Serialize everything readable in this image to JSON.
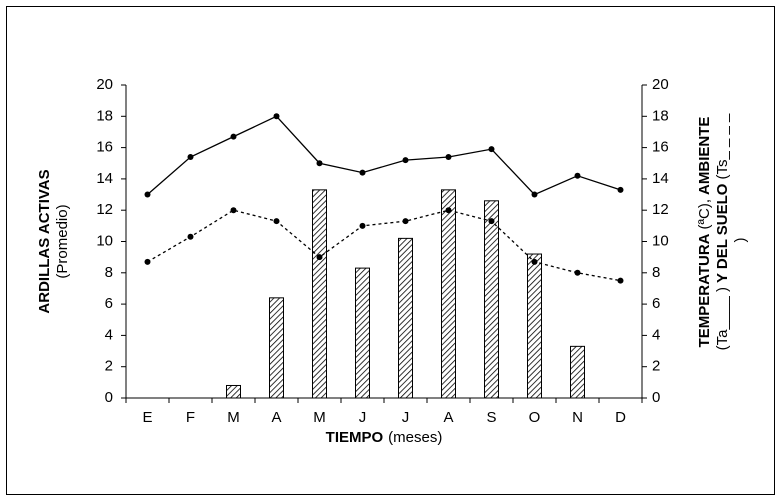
{
  "chart_data": {
    "type": "bar_line",
    "categories": [
      "E",
      "F",
      "M",
      "A",
      "M",
      "J",
      "J",
      "A",
      "S",
      "O",
      "N",
      "D"
    ],
    "series": [
      {
        "type": "bar",
        "color": "#000000",
        "values": [
          0,
          0,
          0.8,
          6.4,
          13.3,
          8.3,
          10.2,
          13.3,
          12.6,
          9.2,
          3.3,
          0
        ]
      },
      {
        "type": "line",
        "axis": "y2",
        "color": "#000000",
        "dashed": false,
        "values": [
          13,
          15.4,
          16.7,
          18,
          15,
          14.4,
          15.2,
          15.4,
          15.9,
          13,
          14.2,
          13.3
        ]
      },
      {
        "type": "line",
        "axis": "y2",
        "color": "#000000",
        "dashed": true,
        "values": [
          8.7,
          10.3,
          12,
          11.3,
          9,
          11,
          11.3,
          12,
          11.3,
          8.7,
          8,
          7.5
        ]
      }
    ],
    "ylim": [
      0,
      20
    ],
    "yticks": [
      0,
      2,
      4,
      6,
      8,
      10,
      12,
      14,
      16,
      18,
      20
    ],
    "y2lim": [
      0,
      20
    ],
    "y2ticks": [
      0,
      2,
      4,
      6,
      8,
      10,
      12,
      14,
      16,
      18,
      20
    ],
    "xlabel": [
      "TIEMPO",
      "(meses)"
    ],
    "ylabel": [
      "ARDILLAS ACTIVAS",
      "(Promedio)"
    ],
    "y2label": [
      [
        "TEMPERATURA",
        "(ªC),",
        "AMBIENTE"
      ],
      [
        "(Ta____ )",
        "Y DEL SUELO",
        "(Ts_ _ _ _"
      ],
      [
        ")"
      ]
    ]
  }
}
